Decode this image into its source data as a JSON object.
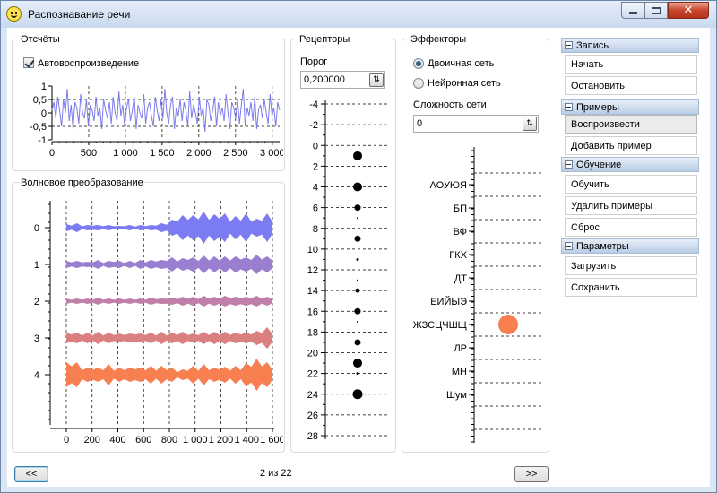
{
  "window": {
    "title": "Распознавание речи"
  },
  "reports": {
    "title": "Отсчёты",
    "autoplay_label": "Автовоспроизведение",
    "y_ticks": [
      "1",
      "0,5",
      "0",
      "-0,5",
      "-1"
    ],
    "x_ticks": [
      "0",
      "500",
      "1 000",
      "1 500",
      "2 000",
      "2 500",
      "3 000"
    ]
  },
  "wavelet": {
    "title": "Волновое преобразование",
    "y_ticks": [
      "0",
      "1",
      "2",
      "3",
      "4"
    ],
    "x_ticks": [
      "0",
      "200",
      "400",
      "600",
      "800",
      "1 000",
      "1 200",
      "1 400",
      "1 600"
    ]
  },
  "receptors": {
    "title": "Рецепторы",
    "threshold_label": "Порог",
    "threshold_value": "0,200000",
    "ticks": [
      "-4",
      "-2",
      "0",
      "2",
      "4",
      "6",
      "8",
      "10",
      "12",
      "14",
      "16",
      "18",
      "20",
      "22",
      "24",
      "26",
      "28"
    ]
  },
  "effectors": {
    "title": "Эффекторы",
    "binary_label": "Двоичная сеть",
    "neural_label": "Нейронная сеть",
    "complexity_label": "Сложность сети",
    "complexity_value": "0",
    "categories": [
      "АОУЮЯ",
      "БП",
      "ВФ",
      "ГКХ",
      "ДТ",
      "ЕИЙЫЭ",
      "ЖЗСЦЧШЩ",
      "ЛР",
      "МН",
      "Шум"
    ]
  },
  "sidebar": [
    {
      "head": "Запись",
      "items": [
        "Начать",
        "Остановить"
      ]
    },
    {
      "head": "Примеры",
      "items": [
        "Воспроизвести",
        "Добавить пример"
      ]
    },
    {
      "head": "Обучение",
      "items": [
        "Обучить",
        "Удалить примеры",
        "Сброс"
      ]
    },
    {
      "head": "Параметры",
      "items": [
        "Загрузить",
        "Сохранить"
      ]
    }
  ],
  "nav": {
    "prev_label": "<<",
    "next_label": ">>",
    "page_indicator": "2 из 22"
  },
  "chart_data": [
    {
      "type": "line",
      "title": "Отсчёты",
      "xlim": [
        0,
        3100
      ],
      "ylim": [
        -1,
        1
      ],
      "x_ticks": [
        0,
        500,
        1000,
        1500,
        2000,
        2500,
        3000
      ],
      "y_ticks": [
        1,
        0.5,
        0,
        -0.5,
        -1
      ],
      "grid": true,
      "series": [
        {
          "color": "#7b7bec",
          "values": [
            0.1,
            0.4,
            -0.2,
            0.6,
            0.1,
            -0.5,
            0.5,
            0.0,
            0.9,
            -0.3,
            0.3,
            -0.6,
            0.4,
            0.2,
            -0.4,
            0.7,
            0.0,
            -0.2,
            0.5,
            -0.5,
            0.3,
            0.1,
            -0.3,
            0.6,
            -0.1,
            0.2,
            -0.6,
            0.5,
            0.1,
            -0.2,
            0.4,
            -0.4,
            0.6,
            0.0,
            -0.3,
            0.8,
            -0.1,
            0.3,
            -0.5,
            0.2,
            0.5,
            -0.3,
            0.1,
            0.6,
            -0.6,
            0.3,
            0.0,
            -0.2,
            0.7,
            -0.4,
            0.2,
            0.4,
            -0.1,
            -0.5,
            0.6,
            0.1,
            -0.3,
            0.5,
            -0.2,
            0.9,
            0.0,
            -0.4,
            0.3,
            0.6,
            -0.6,
            0.2,
            -0.1,
            0.5,
            -0.3,
            0.4,
            0.1,
            -0.5,
            0.8,
            -0.2,
            0.3,
            0.0,
            -0.4,
            0.6,
            -0.1,
            0.2,
            -0.7,
            0.5,
            0.3,
            -0.3,
            0.1,
            0.6,
            -0.5,
            0.4,
            -0.1,
            0.2,
            -0.3,
            0.7,
            0.0,
            -0.6,
            0.4,
            0.2,
            -0.2,
            0.5,
            -0.4,
            0.3,
            0.9,
            -0.5,
            0.2,
            -0.1,
            0.4,
            -0.3,
            0.6,
            -0.6,
            0.1,
            0.3,
            -0.2,
            0.5,
            0.0,
            -0.4,
            0.7,
            -0.1,
            0.2,
            -0.5,
            0.4,
            0.1
          ]
        }
      ]
    },
    {
      "type": "heatmap",
      "title": "Волновое преобразование",
      "xlim": [
        0,
        1600
      ],
      "x_ticks": [
        0,
        200,
        400,
        600,
        800,
        1000,
        1200,
        1400,
        1600
      ],
      "rows": [
        {
          "level": 0,
          "color": "#7b7bf2",
          "amplitudes": [
            4,
            4,
            5,
            3,
            3,
            4,
            3,
            3,
            3,
            3,
            2,
            3,
            3,
            2,
            3,
            3,
            3,
            4,
            5,
            6,
            9,
            12,
            14,
            16,
            14,
            17,
            18,
            16,
            15,
            18,
            16,
            12,
            13,
            14,
            16,
            12,
            10,
            14,
            16,
            12
          ]
        },
        {
          "level": 1,
          "color": "#9a7fd0",
          "amplitudes": [
            4,
            4,
            4,
            4,
            3,
            4,
            5,
            3,
            4,
            5,
            4,
            3,
            4,
            3,
            5,
            4,
            5,
            6,
            5,
            7,
            8,
            6,
            7,
            9,
            8,
            7,
            10,
            8,
            9,
            8,
            9,
            8,
            9,
            10,
            8,
            9,
            11,
            10,
            9,
            8
          ]
        },
        {
          "level": 2,
          "color": "#c07fa8",
          "amplitudes": [
            3,
            3,
            3,
            3,
            3,
            3,
            4,
            3,
            3,
            3,
            3,
            3,
            3,
            3,
            3,
            3,
            4,
            4,
            3,
            5,
            4,
            4,
            5,
            5,
            5,
            4,
            6,
            5,
            5,
            5,
            6,
            6,
            5,
            6,
            5,
            6,
            6,
            5,
            5,
            4
          ]
        },
        {
          "level": 3,
          "color": "#da8080",
          "amplitudes": [
            6,
            7,
            6,
            5,
            6,
            5,
            7,
            5,
            6,
            6,
            5,
            6,
            5,
            7,
            5,
            6,
            6,
            5,
            7,
            5,
            6,
            6,
            7,
            6,
            5,
            6,
            7,
            6,
            7,
            6,
            7,
            6,
            6,
            7,
            6,
            7,
            8,
            10,
            12,
            8
          ]
        },
        {
          "level": 4,
          "color": "#f88050",
          "amplitudes": [
            14,
            17,
            14,
            9,
            8,
            10,
            8,
            9,
            12,
            8,
            8,
            9,
            8,
            11,
            8,
            9,
            10,
            8,
            10,
            9,
            8,
            5,
            6,
            8,
            10,
            8,
            12,
            9,
            8,
            10,
            9,
            8,
            10,
            9,
            13,
            16,
            18,
            17,
            14,
            10
          ]
        }
      ]
    },
    {
      "type": "scatter",
      "title": "Рецепторы",
      "ylim": [
        -4,
        28
      ],
      "points": [
        {
          "y": 1,
          "size": 5
        },
        {
          "y": 4,
          "size": 5
        },
        {
          "y": 6,
          "size": 3.5
        },
        {
          "y": 7,
          "size": 1
        },
        {
          "y": 9,
          "size": 3.5
        },
        {
          "y": 11,
          "size": 1.5
        },
        {
          "y": 13,
          "size": 1
        },
        {
          "y": 14,
          "size": 2.5
        },
        {
          "y": 16,
          "size": 3.5
        },
        {
          "y": 17,
          "size": 1
        },
        {
          "y": 19,
          "size": 3.5
        },
        {
          "y": 21,
          "size": 5
        },
        {
          "y": 22,
          "size": 1.5
        },
        {
          "y": 24,
          "size": 5.5
        }
      ]
    },
    {
      "type": "scatter",
      "title": "Эффекторы",
      "categories": [
        "АОУЮЯ",
        "БП",
        "ВФ",
        "ГКХ",
        "ДТ",
        "ЕИЙЫЭ",
        "ЖЗСЦЧШЩ",
        "ЛР",
        "МН",
        "Шум"
      ],
      "points": [
        {
          "category": "ЖЗСЦЧШЩ",
          "value": 1,
          "color": "#f88050"
        }
      ]
    }
  ]
}
